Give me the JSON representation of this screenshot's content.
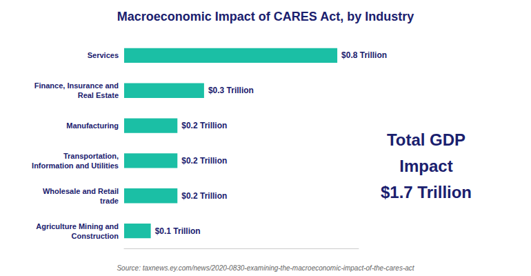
{
  "chart_data": {
    "type": "bar",
    "title": "Macroeconomic Impact of CARES Act, by Industry",
    "orientation": "horizontal",
    "categories": [
      "Agriculture Mining and\nConstruction",
      "Wholesale and Retail\ntrade",
      "Transportation,\nInformation and Utilities",
      "Manufacturing",
      "Finance, Insurance and\nReal Estate",
      "Services"
    ],
    "values": [
      0.1,
      0.2,
      0.2,
      0.2,
      0.3,
      0.8
    ],
    "value_labels": [
      "$0.1 Trillion",
      "$0.2 Trillion",
      "$0.2 Trillion",
      "$0.2 Trillion",
      "$0.3 Trillion",
      "$0.8 Trillion"
    ],
    "data_labels": true,
    "color": "#1BBFA5",
    "xlim": [
      0,
      0.88
    ],
    "tick_labels": "y",
    "grid": false,
    "annotations": [
      "Total GDP",
      "Impact",
      "$1.7 Trillion"
    ],
    "source": "Source: taxnews.ey.com/news/2020-0830-examining-the-macroeconomic-impact-of-the-cares-act"
  }
}
